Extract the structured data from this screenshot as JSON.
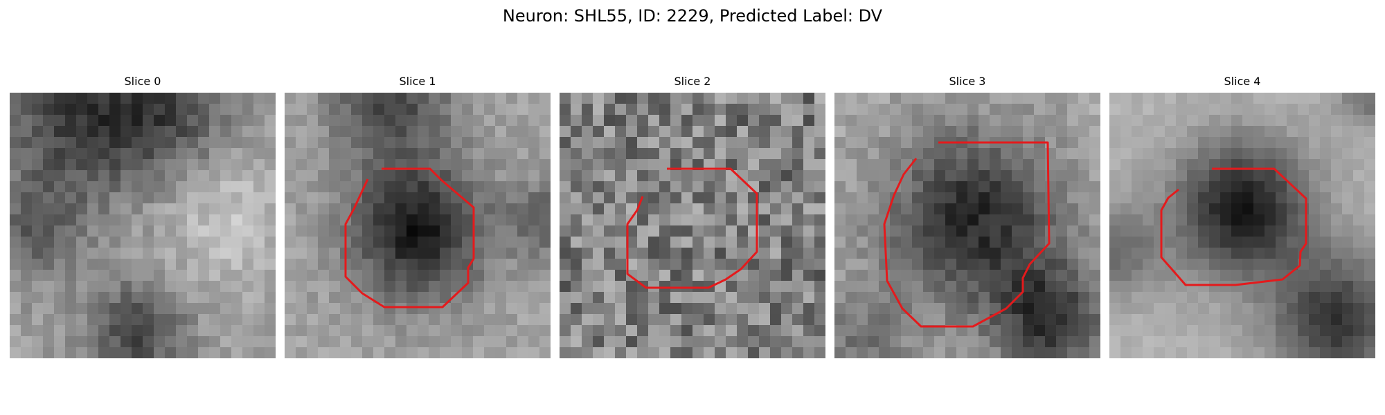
{
  "figure": {
    "title": "Neuron: SHL55, ID: 2229, Predicted Label: DV"
  },
  "panels": [
    {
      "title": "Slice 0",
      "has_outline": false
    },
    {
      "title": "Slice 1",
      "has_outline": true
    },
    {
      "title": "Slice 2",
      "has_outline": true
    },
    {
      "title": "Slice 3",
      "has_outline": true
    },
    {
      "title": "Slice 4",
      "has_outline": true
    }
  ],
  "colors": {
    "outline": "#e41a1c",
    "colormap": "grayscale"
  }
}
